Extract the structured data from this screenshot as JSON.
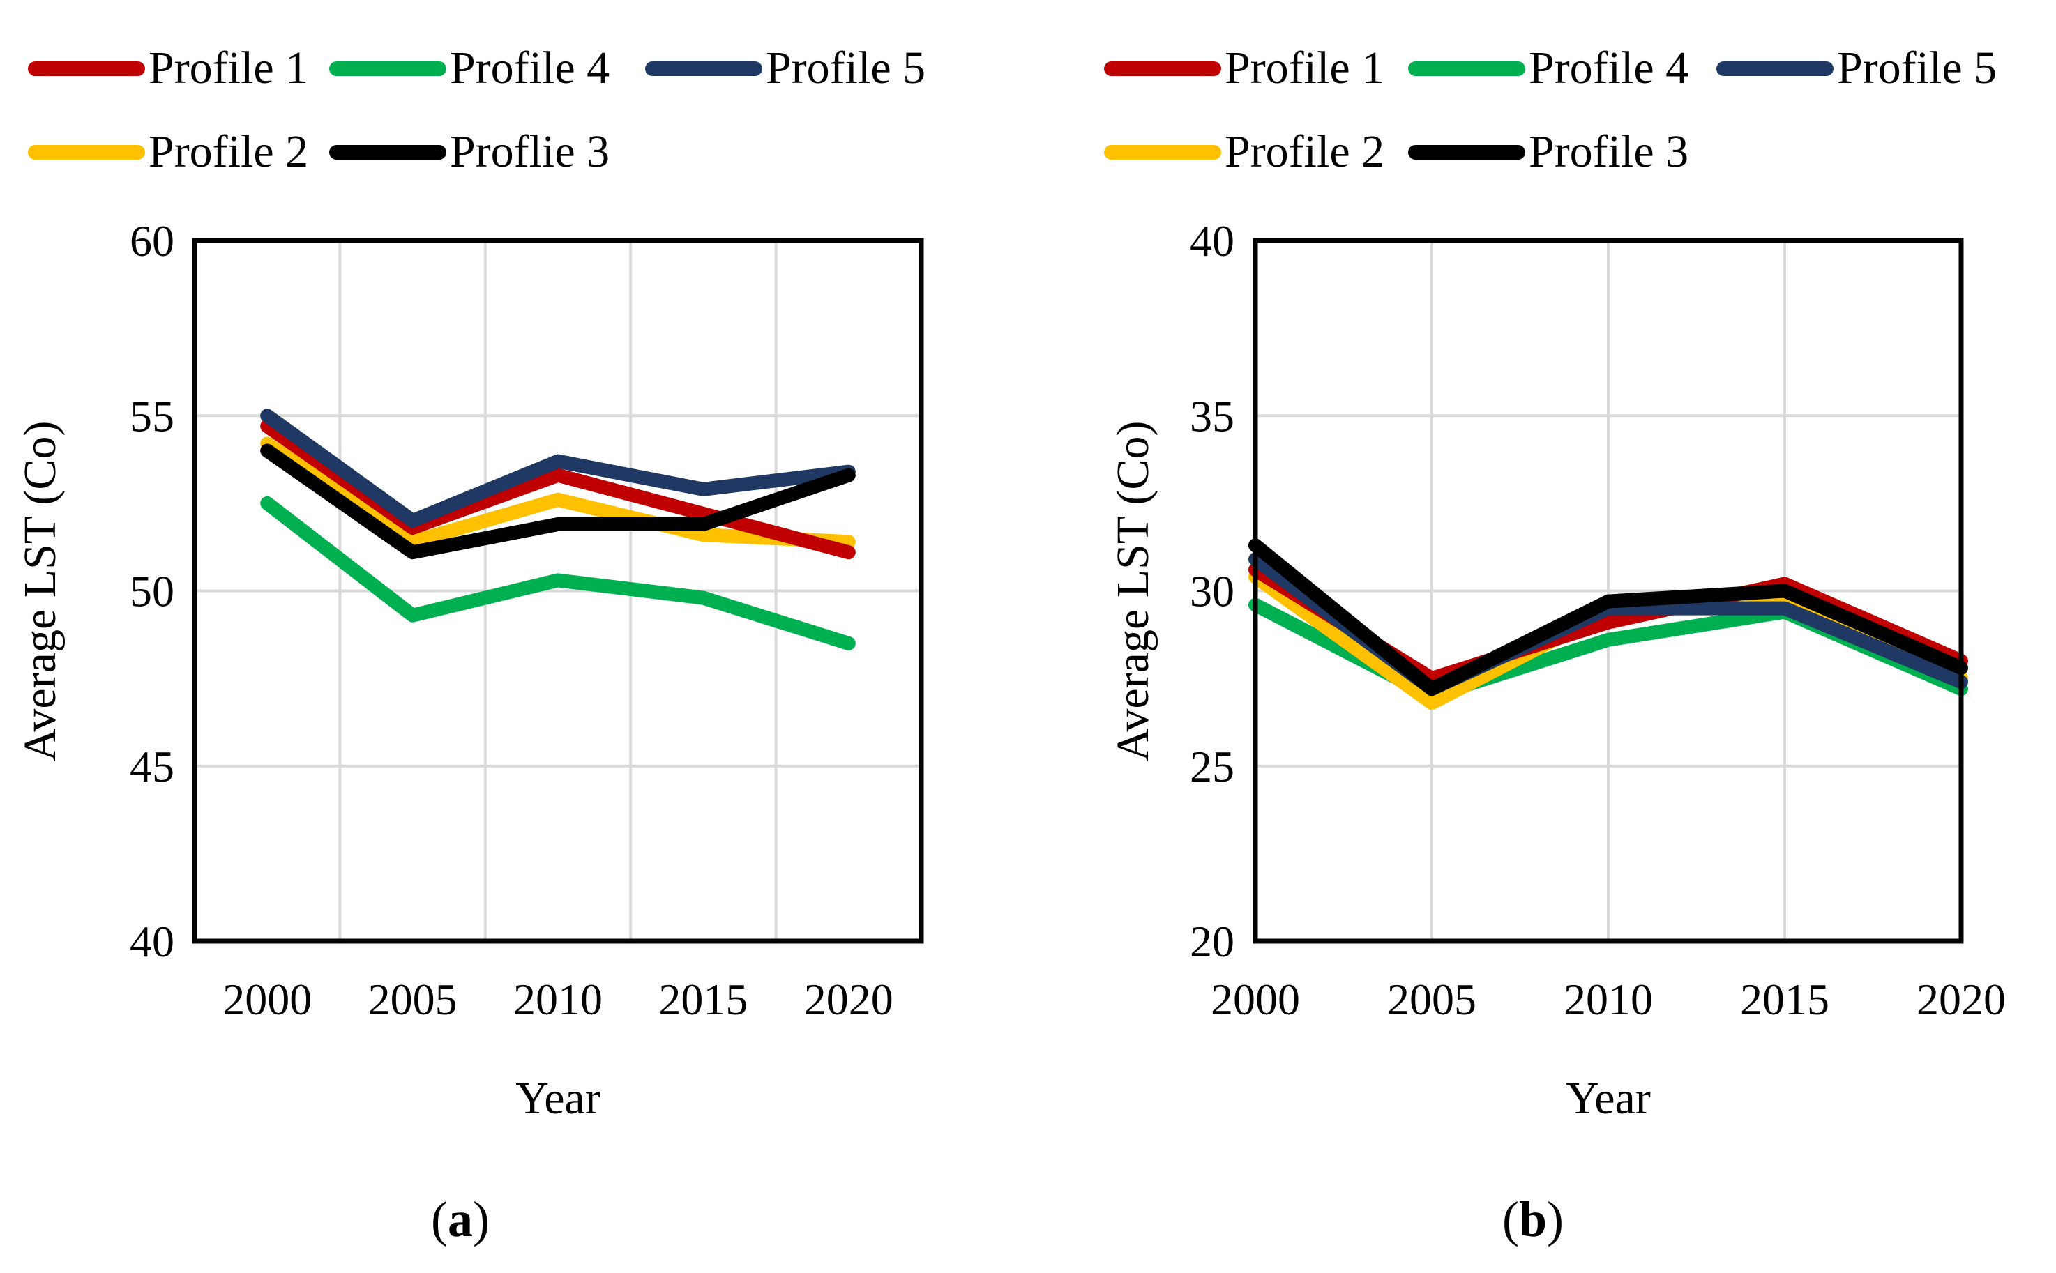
{
  "palette": {
    "profile1_red": "#C00000",
    "profile2_yellow": "#FFC000",
    "profile3_black": "#000000",
    "profile4_green": "#00B050",
    "profile5_navy": "#1F3864",
    "gridline_gray": "#D9D9D9",
    "plot_border": "#000000"
  },
  "chart_data": [
    {
      "type": "line",
      "panel": "a",
      "title": "",
      "xlabel": "Year",
      "ylabel": "Average LST (Co)",
      "caption_open": "(",
      "caption_letter": "a",
      "caption_close": ")",
      "x_categories": [
        "2000",
        "2005",
        "2010",
        "2015",
        "2020"
      ],
      "x_axis_style": "between-ticks",
      "ylim": [
        40,
        60
      ],
      "yticks": [
        40,
        45,
        50,
        55,
        60
      ],
      "grid": true,
      "legend_position": "top",
      "legend_rows": [
        [
          "Profile 1",
          "Profile 4",
          "Profile 5"
        ],
        [
          "Profile 2",
          "Proflie 3"
        ]
      ],
      "series": [
        {
          "name": "Profile 4",
          "color": "#00B050",
          "values": [
            52.5,
            49.3,
            50.3,
            49.8,
            48.5
          ]
        },
        {
          "name": "Profile 2",
          "color": "#FFC000",
          "values": [
            54.2,
            51.4,
            52.6,
            51.6,
            51.4
          ]
        },
        {
          "name": "Profile 1",
          "color": "#C00000",
          "values": [
            54.7,
            51.8,
            53.3,
            52.2,
            51.1
          ]
        },
        {
          "name": "Profile 5",
          "color": "#1F3864",
          "values": [
            55.0,
            52.0,
            53.7,
            52.9,
            53.4
          ]
        },
        {
          "name": "Proflie 3",
          "color": "#000000",
          "values": [
            54.0,
            51.1,
            51.9,
            51.9,
            53.3
          ]
        }
      ]
    },
    {
      "type": "line",
      "panel": "b",
      "title": "",
      "xlabel": "Year",
      "ylabel": "Average LST (Co)",
      "caption_open": "(",
      "caption_letter": "b",
      "caption_close": ")",
      "x_categories": [
        "2000",
        "2005",
        "2010",
        "2015",
        "2020"
      ],
      "x_axis_style": "on-ticks",
      "ylim": [
        20,
        40
      ],
      "yticks": [
        20,
        25,
        30,
        35,
        40
      ],
      "grid": true,
      "legend_position": "top",
      "legend_rows": [
        [
          "Profile 1",
          "Profile 4",
          "Profile 5"
        ],
        [
          "Profile 2",
          "Profile 3"
        ]
      ],
      "series": [
        {
          "name": "Profile 4",
          "color": "#00B050",
          "values": [
            29.6,
            27.0,
            28.6,
            29.4,
            27.2
          ]
        },
        {
          "name": "Profile 2",
          "color": "#FFC000",
          "values": [
            30.4,
            26.8,
            29.4,
            29.7,
            27.5
          ]
        },
        {
          "name": "Profile 1",
          "color": "#C00000",
          "values": [
            30.6,
            27.5,
            29.1,
            30.2,
            28.0
          ]
        },
        {
          "name": "Profile 5",
          "color": "#1F3864",
          "values": [
            30.9,
            27.2,
            29.5,
            29.5,
            27.4
          ]
        },
        {
          "name": "Profile 3",
          "color": "#000000",
          "values": [
            31.3,
            27.2,
            29.7,
            30.0,
            27.8
          ]
        }
      ]
    }
  ]
}
